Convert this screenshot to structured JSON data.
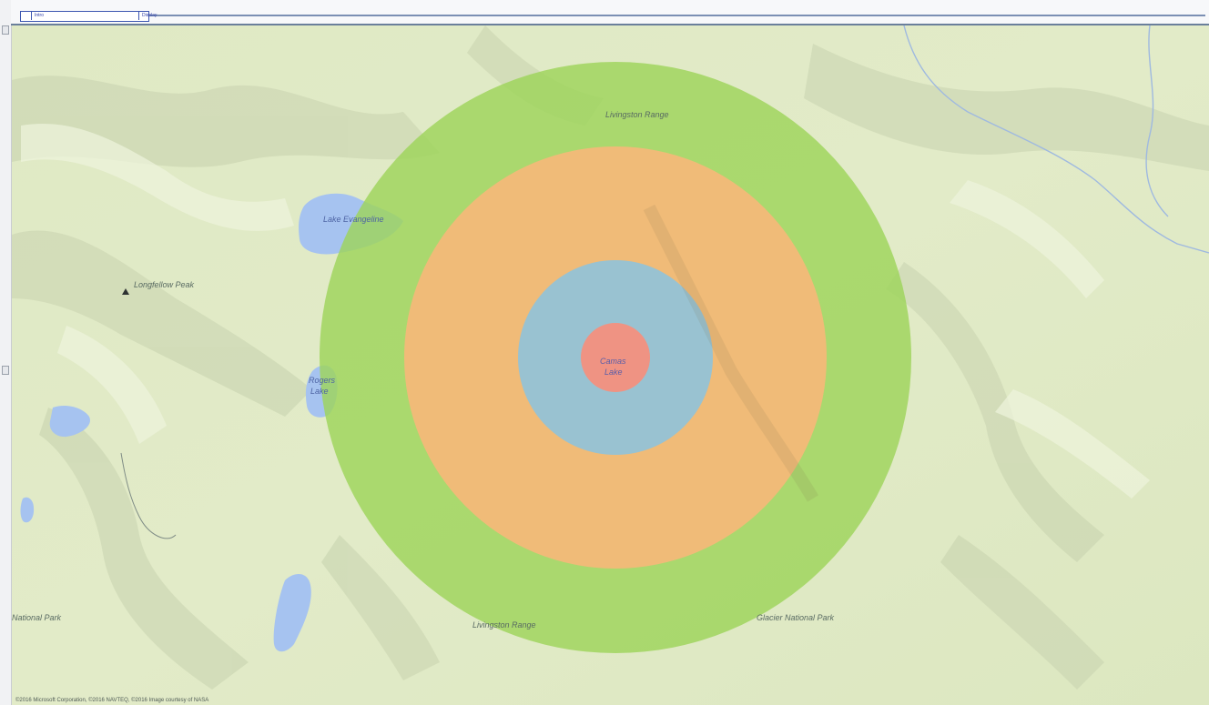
{
  "toolbar": {
    "tab_1": "Intro",
    "tab_2": "Display"
  },
  "map": {
    "base_color": "#dfe9c4",
    "water_color": "#a6c3f0",
    "labels": {
      "range_north": "Livingston Range",
      "range_south": "Livingston Range",
      "lake_north": "Lake Evangeline",
      "peak": "Longfellow Peak",
      "lake_west_1": "Rogers",
      "lake_west_2": "Lake",
      "center_1": "Camas",
      "center_2": "Lake",
      "park_west": "National Park",
      "park_east": "Glacier National Park"
    },
    "copyright": "©2016 Microsoft Corporation, ©2016 NAVTEQ, ©2016 Image courtesy of NASA"
  },
  "rings": [
    {
      "level": "outer",
      "color": "#9ed45a"
    },
    {
      "level": "second",
      "color": "#f6b878"
    },
    {
      "level": "third",
      "color": "#93c2d6"
    },
    {
      "level": "inner",
      "color": "#f3907e"
    }
  ],
  "icons": {
    "peak": "peak-triangle-icon"
  }
}
